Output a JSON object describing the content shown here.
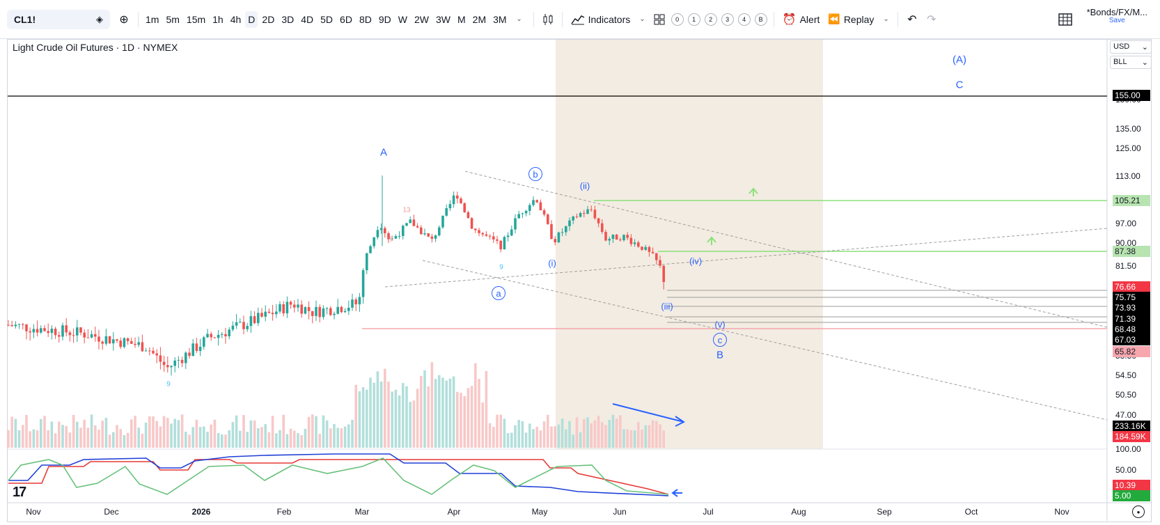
{
  "toolbar": {
    "symbol": "CL1!",
    "intervals": [
      "1m",
      "5m",
      "15m",
      "1h",
      "4h",
      "D",
      "2D",
      "3D",
      "4D",
      "5D",
      "6D",
      "8D",
      "9D",
      "W",
      "2W",
      "3W",
      "M",
      "2M",
      "3M"
    ],
    "active_interval": "D",
    "indicators_label": "Indicators",
    "layout_chips": [
      "0",
      "1",
      "2",
      "3",
      "4",
      "B"
    ],
    "alert_label": "Alert",
    "replay_label": "Replay",
    "layout_name": "*Bonds/FX/M...",
    "save_label": "Save"
  },
  "chart": {
    "legend": "Light Crude Oil Futures · 1D · NYMEX",
    "currency": "USD",
    "unit": "BLL",
    "price_labels": [
      "150.00",
      "135.00",
      "125.00",
      "113.00",
      "97.00",
      "90.00",
      "81.50",
      "58.50",
      "54.50",
      "50.50",
      "47.00",
      "100.00",
      "50.00"
    ],
    "badges": [
      {
        "text": "155.00",
        "bg": "#000000",
        "fg": "#ffffff"
      },
      {
        "text": "105.21",
        "bg": "#b7e4b0",
        "fg": "#131722"
      },
      {
        "text": "87.38",
        "bg": "#b7e4b0",
        "fg": "#131722"
      },
      {
        "text": "76.66",
        "bg": "#f23645",
        "fg": "#ffffff"
      },
      {
        "text": "75.75",
        "bg": "#000000",
        "fg": "#ffffff"
      },
      {
        "text": "73.93",
        "bg": "#000000",
        "fg": "#ffffff"
      },
      {
        "text": "71.39",
        "bg": "#000000",
        "fg": "#ffffff"
      },
      {
        "text": "68.48",
        "bg": "#000000",
        "fg": "#ffffff"
      },
      {
        "text": "67.03",
        "bg": "#000000",
        "fg": "#ffffff"
      },
      {
        "text": "65.82",
        "bg": "#f7a6ad",
        "fg": "#131722"
      },
      {
        "text": "233.16K",
        "bg": "#000000",
        "fg": "#ffffff"
      },
      {
        "text": "184.59K",
        "bg": "#f23645",
        "fg": "#ffffff"
      },
      {
        "text": "10.39",
        "bg": "#f23645",
        "fg": "#ffffff"
      },
      {
        "text": "5.00",
        "bg": "#22ab3c",
        "fg": "#ffffff"
      }
    ],
    "time_labels": [
      "Nov",
      "Dec",
      "2026",
      "Feb",
      "Mar",
      "Apr",
      "May",
      "Jun",
      "Jul",
      "Aug",
      "Sep",
      "Oct",
      "Nov"
    ],
    "wave_labels": [
      "(A)",
      "C",
      "A",
      "b",
      "(ii)",
      "(i)",
      "a",
      "(iv)",
      "(iii)",
      "(v)",
      "c",
      "B"
    ],
    "td_counts": [
      "9",
      "13",
      "9",
      "9"
    ],
    "logo": "17"
  },
  "colors": {
    "up": "#26a69a",
    "down": "#ef5350",
    "wave": "#2962ff",
    "green_level": "#8be07a",
    "red_level": "#f7a6ad",
    "highlight_zone": "#f3ece2"
  }
}
